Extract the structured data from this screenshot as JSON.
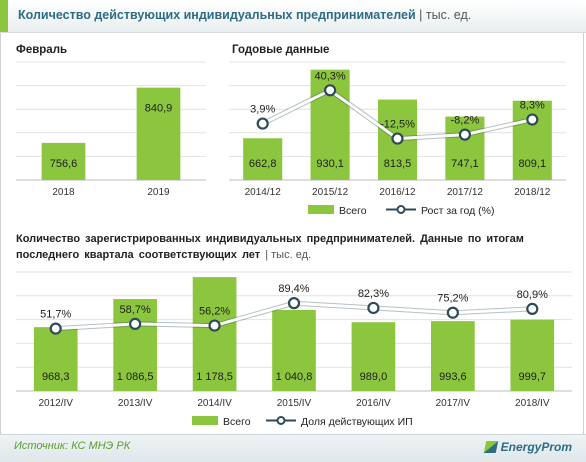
{
  "header": {
    "title": "Количество действующих индивидуальных предпринимателей",
    "unit": "| тыс. ед."
  },
  "colors": {
    "bar": "#8cc63f",
    "bar_dark": "#6fa82b",
    "line": "#ffffff",
    "line_outline": "#2e4a5a",
    "grid": "#e2e2e2",
    "accent": "#2e6c86"
  },
  "chart_data": [
    {
      "type": "bar",
      "title": "Февраль",
      "categories": [
        "2018",
        "2019"
      ],
      "values": [
        756.6,
        840.9
      ],
      "value_labels": [
        "756,6",
        "840,9"
      ],
      "ylim": [
        700,
        880
      ],
      "grid": true
    },
    {
      "type": "bar",
      "title": "Годовые данные",
      "categories": [
        "2014/12",
        "2015/12",
        "2016/12",
        "2017/12",
        "2018/12"
      ],
      "series": [
        {
          "name": "Всего",
          "values": [
            662.8,
            930.1,
            813.5,
            747.1,
            809.1
          ],
          "value_labels": [
            "662,8",
            "930,1",
            "813,5",
            "747,1",
            "809,1"
          ]
        },
        {
          "name": "Рост за год (%)",
          "type": "line",
          "values": [
            3.9,
            40.3,
            -12.5,
            -8.2,
            8.3
          ],
          "value_labels": [
            "3,9%",
            "40,3%",
            "-12,5%",
            "-8,2%",
            "8,3%"
          ]
        }
      ],
      "ylim": [
        500,
        960
      ],
      "y2lim": [
        -25,
        45
      ],
      "legend": "bottom",
      "grid": true
    },
    {
      "type": "bar",
      "title": "Количество зарегистрированных индивидуальных предпринимателей. Данные по итогам последнего квартала соответствующих лет",
      "unit": "| тыс. ед.",
      "categories": [
        "2012/IV",
        "2013/IV",
        "2014/IV",
        "2015/IV",
        "2016/IV",
        "2017/IV",
        "2018/IV"
      ],
      "series": [
        {
          "name": "Всего",
          "values": [
            968.3,
            1086.5,
            1178.5,
            1040.8,
            989.0,
            993.6,
            999.7
          ],
          "value_labels": [
            "968,3",
            "1 086,5",
            "1 178,5",
            "1 040,8",
            "989,0",
            "993,6",
            "999,7"
          ]
        },
        {
          "name": "Доля действующих ИП",
          "type": "line",
          "values": [
            51.7,
            58.7,
            56.2,
            89.4,
            82.3,
            75.2,
            80.9
          ],
          "value_labels": [
            "51,7%",
            "58,7%",
            "56,2%",
            "89,4%",
            "82,3%",
            "75,2%",
            "80,9%"
          ]
        }
      ],
      "ylim": [
        700,
        1200
      ],
      "y2lim": [
        20,
        100
      ],
      "legend": "bottom",
      "grid": true
    }
  ],
  "footer": {
    "source": "Источник: КС МНЭ РК",
    "logo": "EnergyProm"
  }
}
